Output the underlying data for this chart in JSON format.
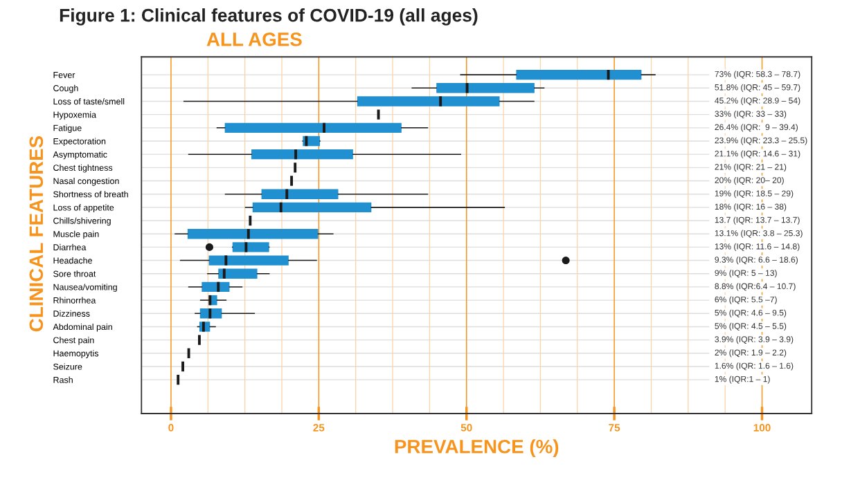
{
  "chart_data": {
    "type": "box",
    "orientation": "horizontal",
    "title": "Figure 1: Clinical features of COVID-19 (all ages)",
    "subtitle": "ALL AGES",
    "xlabel": "PREVALENCE (%)",
    "ylabel": "CLINICAL FEATURES",
    "categories": [
      "Fever",
      "Cough",
      "Loss of taste/smell",
      "Hypoxemia",
      "Fatigue",
      "Expectoration",
      "Asymptomatic",
      "Chest tightness",
      "Nasal congestion",
      "Shortness of breath",
      "Loss of appetite",
      "Chills/shivering",
      "Muscle pain",
      "Diarrhea",
      "Headache",
      "Sore throat",
      "Nausea/vomiting",
      "Rhinorrhea",
      "Dizziness",
      "Abdominal pain",
      "Chest pain",
      "Haemopytis",
      "Seizure",
      "Rash"
    ],
    "colors": [
      "#2190d0",
      "#2190d0",
      "#2190d0",
      "#1a1a1a",
      "#2190d0",
      "#2190d0",
      "#2190d0",
      "#1a1a1a",
      "#1a1a1a",
      "#2190d0",
      "#2190d0",
      "#1a1a1a",
      "#2190d0",
      "#2190d0",
      "#2190d0",
      "#2190d0",
      "#2190d0",
      "#2190d0",
      "#2190d0",
      "#2190d0",
      "#1a1a1a",
      "#1a1a1a",
      "#1a1a1a",
      "#1a1a1a"
    ],
    "boxes": [
      {
        "low": 49.0,
        "q1": 58.4,
        "median": 74.0,
        "q3": 79.6,
        "high": 81.9
      },
      {
        "low": 40.8,
        "q1": 44.9,
        "median": 50.1,
        "q3": 61.5,
        "high": 63.1
      },
      {
        "low": 2.2,
        "q1": 31.5,
        "median": 45.6,
        "q3": 55.6,
        "high": 61.4
      },
      {
        "low": 35.1,
        "q1": 35.1,
        "median": 35.1,
        "q3": 35.1,
        "high": 35.1
      },
      {
        "low": 7.8,
        "q1": 9.1,
        "median": 25.9,
        "q3": 39.0,
        "high": 43.4
      },
      {
        "low": 22.3,
        "q1": 22.3,
        "median": 22.9,
        "q3": 25.2,
        "high": 25.2
      },
      {
        "low": 3.0,
        "q1": 13.6,
        "median": 21.1,
        "q3": 30.8,
        "high": 49.0
      },
      {
        "low": 21.0,
        "q1": 21.0,
        "median": 21.0,
        "q3": 21.0,
        "high": 21.0
      },
      {
        "low": 20.4,
        "q1": 20.4,
        "median": 20.4,
        "q3": 20.4,
        "high": 20.4
      },
      {
        "low": 9.2,
        "q1": 15.3,
        "median": 19.6,
        "q3": 28.3,
        "high": 43.4
      },
      {
        "low": 12.6,
        "q1": 13.8,
        "median": 18.6,
        "q3": 33.9,
        "high": 56.4
      },
      {
        "low": 13.4,
        "q1": 13.4,
        "median": 13.4,
        "q3": 13.4,
        "high": 13.4
      },
      {
        "low": 0.7,
        "q1": 2.8,
        "median": 13.1,
        "q3": 24.9,
        "high": 27.4
      },
      {
        "low": 10.4,
        "q1": 10.4,
        "median": 12.7,
        "q3": 16.6,
        "high": 16.6,
        "outliers": [
          6.5
        ]
      },
      {
        "low": 1.6,
        "q1": 6.4,
        "median": 9.3,
        "q3": 19.9,
        "high": 24.6,
        "outliers": [
          66.8
        ]
      },
      {
        "low": 6.2,
        "q1": 8.0,
        "median": 9.0,
        "q3": 14.6,
        "high": 16.6
      },
      {
        "low": 3.0,
        "q1": 5.2,
        "median": 8.0,
        "q3": 9.9,
        "high": 12.0
      },
      {
        "low": 5.0,
        "q1": 6.4,
        "median": 6.6,
        "q3": 7.8,
        "high": 9.3
      },
      {
        "low": 4.1,
        "q1": 4.9,
        "median": 6.6,
        "q3": 8.6,
        "high": 14.1
      },
      {
        "low": 4.5,
        "q1": 4.8,
        "median": 5.5,
        "q3": 6.6,
        "high": 7.5
      },
      {
        "low": 4.8,
        "q1": 4.8,
        "median": 4.8,
        "q3": 4.8,
        "high": 4.8
      },
      {
        "low": 3.0,
        "q1": 3.0,
        "median": 3.0,
        "q3": 3.0,
        "high": 3.0
      },
      {
        "low": 2.0,
        "q1": 2.0,
        "median": 2.0,
        "q3": 2.0,
        "high": 2.0
      },
      {
        "low": 1.2,
        "q1": 1.2,
        "median": 1.2,
        "q3": 1.2,
        "high": 1.2
      }
    ],
    "annotations": [
      "73% (IQR: 58.3 – 78.7)",
      "51.8% (IQR: 45 – 59.7)",
      "45.2% (IQR: 28.9 – 54)",
      "33% (IQR: 33 – 33)",
      "26.4% (IQR:  9 – 39.4)",
      "23.9% (IQR: 23.3 – 25.5)",
      "21.1% (IQR: 14.6 – 31)",
      "21% (IQR: 21 – 21)",
      "20% (IQR: 20– 20)",
      "19% (IQR: 18.5 – 29)",
      "18% (IQR: 16 – 38)",
      "13.7 (IQR: 13.7 – 13.7)",
      "13.1% (IQR: 3.8 – 25.3)",
      "13% (IQR: 11.6 – 14.8)",
      "9.3% (IQR: 6.6 – 18.6)",
      "9% (IQR: 5 – 13)",
      "8.8% (IQR:6.4 – 10.7)",
      "6% (IQR: 5.5 –7)",
      "5% (IQR: 4.6 – 9.5)",
      "5% (IQR: 4.5 – 5.5)",
      "3.9% (IQR: 3.9 – 3.9)",
      "2% (IQR: 1.9 – 2.2)",
      "1.6% (IQR: 1.6 – 1.6)",
      "1% (IQR:1 – 1)"
    ],
    "xlim": [
      -5,
      108.4
    ],
    "xticks": [
      0,
      {
        "value": 6.25,
        "label": null
      },
      {
        "value": 12.5,
        "label": null
      },
      {
        "value": 18.75,
        "label": null
      },
      25,
      {
        "value": 31.25,
        "label": null
      },
      {
        "value": 37.5,
        "label": null
      },
      {
        "value": 43.75,
        "label": null
      },
      50,
      {
        "value": 56.25,
        "label": null
      },
      {
        "value": 62.5,
        "label": null
      },
      {
        "value": 68.75,
        "label": null
      },
      75,
      {
        "value": 81.25,
        "label": null
      },
      {
        "value": 87.5,
        "label": null
      },
      {
        "value": 93.75,
        "label": null
      },
      100
    ],
    "grid": true,
    "tick_labels": "x"
  }
}
